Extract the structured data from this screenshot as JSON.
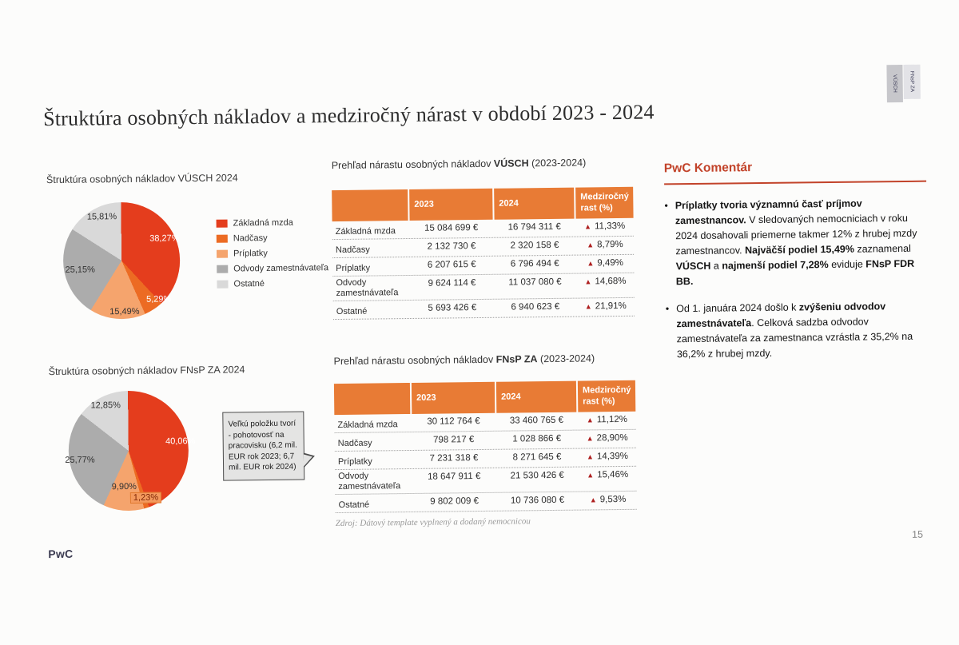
{
  "slide": {
    "title": "Štruktúra osobných nákladov a medziročný nárast v období 2023 - 2024",
    "footer_logo": "PwC",
    "page_number": "15",
    "side_tabs": [
      {
        "label": "VÚSCH"
      },
      {
        "label": "FNsP ZA"
      }
    ]
  },
  "colors": {
    "series_zakladna_mzda": "#e43d1d",
    "series_nadcasy": "#ec6b23",
    "series_priplatky": "#f5a46d",
    "series_odvody": "#acacac",
    "series_ostatne": "#d9d9d9",
    "table_header_orange": "#e87b35",
    "growth_triangle_red": "#ae1f1f",
    "comment_accent_red": "#c2432a"
  },
  "chart_data": [
    {
      "type": "pie",
      "title": "Štruktúra osobných nákladov VÚSCH 2024",
      "legend_position": "right",
      "slices": [
        {
          "label": "Základná mzda",
          "value": 38.27,
          "display": "38,27%",
          "color": "#e43d1d"
        },
        {
          "label": "Nadčasy",
          "value": 5.29,
          "display": "5,29%",
          "color": "#ec6b23"
        },
        {
          "label": "Príplatky",
          "value": 15.49,
          "display": "15,49%",
          "color": "#f5a46d"
        },
        {
          "label": "Odvody zamestnávateľa",
          "value": 25.15,
          "display": "25,15%",
          "color": "#acacac"
        },
        {
          "label": "Ostatné",
          "value": 15.81,
          "display": "15,81%",
          "color": "#d9d9d9"
        }
      ]
    },
    {
      "type": "pie",
      "title": "Štruktúra osobných nákladov FNsP ZA 2024",
      "legend_position": "none",
      "slices": [
        {
          "label": "Základná mzda",
          "value": 40.06,
          "display": "40,06%",
          "color": "#e43d1d"
        },
        {
          "label": "Nadčasy",
          "value": 1.23,
          "display": "1,23%",
          "color": "#ec6b23"
        },
        {
          "label": "Príplatky",
          "value": 9.9,
          "display": "9,90%",
          "color": "#f5a46d"
        },
        {
          "label": "Odvody zamestnávateľa",
          "value": 25.77,
          "display": "25,77%",
          "color": "#acacac"
        },
        {
          "label": "Ostatné",
          "value": 12.85,
          "display": "12,85%",
          "color": "#d9d9d9"
        }
      ]
    }
  ],
  "callout": {
    "text": "Veľkú položku tvorí - pohotovosť na pracovisku (6,2 mil. EUR rok 2023; 6,7 mil. EUR rok 2024)"
  },
  "tables": [
    {
      "title": [
        {
          "t": "Prehľad nárastu osobných nákladov ",
          "b": false
        },
        {
          "t": "VÚSCH",
          "b": true
        },
        {
          "t": " (2023-2024)",
          "b": false
        }
      ],
      "columns": [
        "",
        "2023",
        "2024",
        "Medziročný rast (%)"
      ],
      "growth_symbol": "▲",
      "rows": [
        {
          "label": "Základná mzda",
          "y2023": "15 084 699 €",
          "y2024": "16 794 311 €",
          "growth": "11,33%"
        },
        {
          "label": "Nadčasy",
          "y2023": "2 132 730 €",
          "y2024": "2 320 158 €",
          "growth": "8,79%"
        },
        {
          "label": "Príplatky",
          "y2023": "6 207 615 €",
          "y2024": "6 796 494 €",
          "growth": "9,49%"
        },
        {
          "label": "Odvody zamestnávateľa",
          "y2023": "9 624 114 €",
          "y2024": "11 037 080 €",
          "growth": "14,68%"
        },
        {
          "label": "Ostatné",
          "y2023": "5 693 426 €",
          "y2024": "6 940 623 €",
          "growth": "21,91%"
        }
      ]
    },
    {
      "title": [
        {
          "t": "Prehľad nárastu osobných nákladov ",
          "b": false
        },
        {
          "t": "FNsP ZA",
          "b": true
        },
        {
          "t": " (2023-2024)",
          "b": false
        }
      ],
      "columns": [
        "",
        "2023",
        "2024",
        "Medziročný rast (%)"
      ],
      "growth_symbol": "▲",
      "rows": [
        {
          "label": "Základná mzda",
          "y2023": "30 112 764 €",
          "y2024": "33 460 765 €",
          "growth": "11,12%"
        },
        {
          "label": "Nadčasy",
          "y2023": "798 217 €",
          "y2024": "1 028 866 €",
          "growth": "28,90%"
        },
        {
          "label": "Príplatky",
          "y2023": "7 231 318 €",
          "y2024": "8 271 645 €",
          "growth": "14,39%"
        },
        {
          "label": "Odvody zamestnávateľa",
          "y2023": "18 647 911 €",
          "y2024": "21 530 426 €",
          "growth": "15,46%"
        },
        {
          "label": "Ostatné",
          "y2023": "9 802 009 €",
          "y2024": "10 736 080 €",
          "growth": "9,53%"
        }
      ]
    }
  ],
  "source_note": "Zdroj: Dátový template vyplnený a dodaný nemocnicou",
  "comment": {
    "heading": "PwC Komentár",
    "bullet_symbol": "•",
    "bullets": [
      [
        {
          "t": "Príplatky tvoria významnú časť príjmov zamestnancov.",
          "b": true
        },
        {
          "t": " V sledovaných nemocniciach v roku 2024 dosahovali priemerne takmer 12% z hrubej mzdy zamestnancov. ",
          "b": false
        },
        {
          "t": "Najväčší podiel 15,49%",
          "b": true
        },
        {
          "t": " zaznamenal ",
          "b": false
        },
        {
          "t": "VÚSCH",
          "b": true
        },
        {
          "t": " a ",
          "b": false
        },
        {
          "t": "najmenší podiel 7,28%",
          "b": true
        },
        {
          "t": " eviduje ",
          "b": false
        },
        {
          "t": "FNsP FDR BB.",
          "b": true
        }
      ],
      [
        {
          "t": "Od 1. januára 2024 došlo k ",
          "b": false
        },
        {
          "t": "zvýšeniu odvodov zamestnávateľa",
          "b": true
        },
        {
          "t": ". Celková sadzba odvodov zamestnávateľa za zamestnanca vzrástla z 35,2% na 36,2% z hrubej mzdy.",
          "b": false
        }
      ]
    ]
  }
}
